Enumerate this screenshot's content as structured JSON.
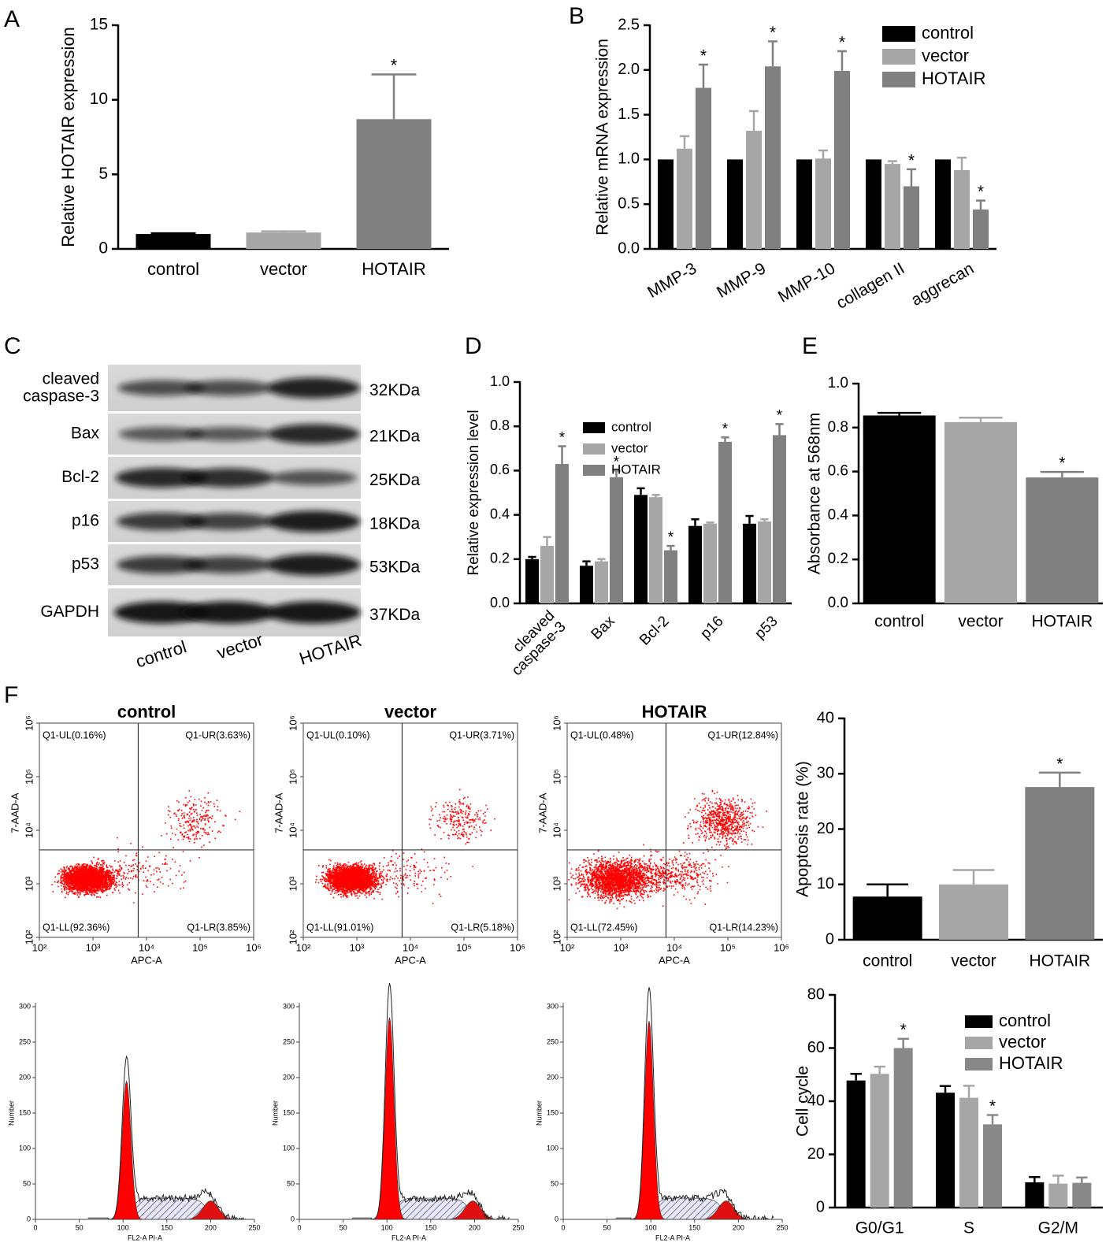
{
  "chart_data": [
    {
      "type": "bar",
      "panel": "A",
      "ylabel": "Relative HOTAIR expression",
      "categories": [
        "control",
        "vector",
        "HOTAIR"
      ],
      "values": [
        1.0,
        1.1,
        8.7
      ],
      "errors": [
        0.05,
        0.08,
        3.0
      ],
      "annotations": [
        null,
        null,
        "*"
      ],
      "colors": [
        "#000000",
        "#a6a6a6",
        "#808080"
      ],
      "ylim": [
        0,
        15
      ],
      "yticks": [
        0,
        5,
        10,
        15
      ]
    },
    {
      "type": "grouped-bar",
      "panel": "B",
      "ylabel": "Relative mRNA expression",
      "categories": [
        "MMP-3",
        "MMP-9",
        "MMP-10",
        "collagen II",
        "aggrecan"
      ],
      "series": [
        {
          "name": "control",
          "color": "#000000",
          "values": [
            1,
            1,
            1,
            1,
            1
          ]
        },
        {
          "name": "vector",
          "color": "#a6a6a6",
          "values": [
            1.12,
            1.32,
            1.01,
            0.95,
            0.88
          ],
          "errors": [
            0.14,
            0.22,
            0.09,
            0.03,
            0.14
          ]
        },
        {
          "name": "HOTAIR",
          "color": "#808080",
          "values": [
            1.8,
            2.04,
            1.99,
            0.7,
            0.44
          ],
          "errors": [
            0.26,
            0.28,
            0.22,
            0.19,
            0.1
          ],
          "annotations": [
            "*",
            "*",
            "*",
            "*",
            "*"
          ]
        }
      ],
      "ylim": [
        0,
        2.5
      ],
      "yticks": [
        {
          "value": 0,
          "label": "0.0"
        },
        0.5,
        {
          "value": 1,
          "label": "1.0"
        },
        1.5,
        {
          "value": 2,
          "label": "2.0"
        },
        2.5
      ]
    },
    {
      "type": "western-blot",
      "panel": "C",
      "proteins": [
        "cleaved\ncaspase-3",
        "Bax",
        "Bcl-2",
        "p16",
        "p53",
        "GAPDH"
      ],
      "sizes": [
        "32KDa",
        "21KDa",
        "25KDa",
        "18KDa",
        "53KDa",
        "37KDa"
      ],
      "lanes": [
        "control",
        "vector",
        "HOTAIR"
      ]
    },
    {
      "type": "grouped-bar",
      "panel": "D",
      "ylabel": "Relative expression level",
      "categories": [
        "cleaved\ncaspase-3",
        "Bax",
        "Bcl-2",
        "p16",
        "p53"
      ],
      "series": [
        {
          "name": "control",
          "color": "#000000",
          "values": [
            0.2,
            0.17,
            0.49,
            0.35,
            0.36
          ],
          "errors": [
            0.01,
            0.02,
            0.03,
            0.03,
            0.035
          ]
        },
        {
          "name": "vector",
          "color": "#a6a6a6",
          "values": [
            0.26,
            0.19,
            0.48,
            0.36,
            0.37
          ],
          "errors": [
            0.04,
            0.01,
            0.01,
            0.005,
            0.01
          ]
        },
        {
          "name": "HOTAIR",
          "color": "#808080",
          "values": [
            0.63,
            0.57,
            0.24,
            0.73,
            0.76
          ],
          "errors": [
            0.08,
            0.03,
            0.02,
            0.02,
            0.05
          ],
          "annotations": [
            "*",
            "*",
            "*",
            "*",
            "*"
          ]
        }
      ],
      "ylim": [
        0,
        1
      ],
      "yticks": [
        {
          "value": 0,
          "label": "0.0"
        },
        0.2,
        0.4,
        0.6,
        0.8,
        {
          "value": 1,
          "label": "1.0"
        }
      ]
    },
    {
      "type": "bar",
      "panel": "E",
      "ylabel": "Absorbance at 568nm",
      "categories": [
        "control",
        "vector",
        "HOTAIR"
      ],
      "values": [
        0.855,
        0.825,
        0.573
      ],
      "errors": [
        0.012,
        0.02,
        0.025
      ],
      "annotations": [
        null,
        null,
        "*"
      ],
      "colors": [
        "#000000",
        "#a6a6a6",
        "#808080"
      ],
      "ylim": [
        0,
        1
      ],
      "yticks": [
        {
          "value": 0,
          "label": "0.0"
        },
        0.2,
        0.4,
        0.6,
        0.8,
        {
          "value": 1,
          "label": "1.0"
        }
      ]
    },
    {
      "type": "flow",
      "panel": "F",
      "title": "control",
      "xlabel": "APC-A",
      "ylabel": "7-AAD-A",
      "scale": "log",
      "xlim": [
        100,
        1000000
      ],
      "ylim": [
        100,
        1000000
      ],
      "xticks": [
        {
          "value": 100,
          "label": "10²"
        },
        {
          "value": 1000,
          "label": "10³"
        },
        {
          "value": 10000,
          "label": "10⁴"
        },
        {
          "value": 100000,
          "label": "10⁵"
        },
        {
          "value": 1000000,
          "label": "10⁶"
        }
      ],
      "yticks": [
        {
          "value": 100,
          "label": "10²"
        },
        {
          "value": 1000,
          "label": "10³"
        },
        {
          "value": 10000,
          "label": "10⁴"
        },
        {
          "value": 100000,
          "label": "10⁵"
        },
        {
          "value": 1000000,
          "label": "10⁶"
        }
      ],
      "gate": [
        7000,
        4300
      ],
      "quadrants": [
        "Q1-UL(0.16%)",
        "Q1-UR(3.63%)",
        "Q1-LL(92.36%)",
        "Q1-LR(3.85%)"
      ]
    },
    {
      "type": "flow",
      "title": "vector",
      "xlabel": "APC-A",
      "ylabel": "7-AAD-A",
      "scale": "log",
      "xlim": [
        100,
        1000000
      ],
      "ylim": [
        100,
        1000000
      ],
      "xticks": [
        {
          "value": 100,
          "label": "10²"
        },
        {
          "value": 1000,
          "label": "10³"
        },
        {
          "value": 10000,
          "label": "10⁴"
        },
        {
          "value": 100000,
          "label": "10⁵"
        },
        {
          "value": 1000000,
          "label": "10⁶"
        }
      ],
      "yticks": [
        {
          "value": 100,
          "label": "10²"
        },
        {
          "value": 1000,
          "label": "10³"
        },
        {
          "value": 10000,
          "label": "10⁴"
        },
        {
          "value": 100000,
          "label": "10⁵"
        },
        {
          "value": 1000000,
          "label": "10⁶"
        }
      ],
      "gate": [
        7000,
        4300
      ],
      "quadrants": [
        "Q1-UL(0.10%)",
        "Q1-UR(3.71%)",
        "Q1-LL(91.01%)",
        "Q1-LR(5.18%)"
      ]
    },
    {
      "type": "flow",
      "title": "HOTAIR",
      "xlabel": "APC-A",
      "ylabel": "7-AAD-A",
      "scale": "log",
      "xlim": [
        100,
        1000000
      ],
      "ylim": [
        100,
        1000000
      ],
      "xticks": [
        {
          "value": 100,
          "label": "10²"
        },
        {
          "value": 1000,
          "label": "10³"
        },
        {
          "value": 10000,
          "label": "10⁴"
        },
        {
          "value": 100000,
          "label": "10⁵"
        },
        {
          "value": 1000000,
          "label": "10⁶"
        }
      ],
      "yticks": [
        {
          "value": 100,
          "label": "10²"
        },
        {
          "value": 1000,
          "label": "10³"
        },
        {
          "value": 10000,
          "label": "10⁴"
        },
        {
          "value": 100000,
          "label": "10⁵"
        },
        {
          "value": 1000000,
          "label": "10⁶"
        }
      ],
      "gate": [
        7000,
        4300
      ],
      "quadrants": [
        "Q1-UL(0.48%)",
        "Q1-UR(12.84%)",
        "Q1-LL(72.45%)",
        "Q1-LR(14.23%)"
      ]
    },
    {
      "type": "bar",
      "ylabel": "Apoptosis rate (%)",
      "categories": [
        "control",
        "vector",
        "HOTAIR"
      ],
      "values": [
        7.8,
        10,
        27.6
      ],
      "errors": [
        2.2,
        2.6,
        2.6
      ],
      "annotations": [
        null,
        null,
        "*"
      ],
      "colors": [
        "#000000",
        "#a6a6a6",
        "#808080"
      ],
      "ylim": [
        0,
        40
      ],
      "yticks": [
        0,
        10,
        20,
        30,
        40
      ]
    },
    {
      "type": "cytometry-histogram",
      "xlabel": "FL2-A PI-A",
      "ylabel": "Number",
      "xlim": [
        0,
        250
      ],
      "ylim": [
        0,
        300
      ],
      "xticks": [
        0,
        50,
        100,
        150,
        200,
        250
      ],
      "yticks": [
        0,
        50,
        100,
        150,
        200,
        250,
        300
      ]
    },
    {
      "type": "cytometry-histogram",
      "xlabel": "FL2-A PI-A",
      "ylabel": "Number",
      "xlim": [
        0,
        250
      ],
      "ylim": [
        0,
        300
      ],
      "xticks": [
        0,
        50,
        100,
        150,
        200,
        250
      ],
      "yticks": [
        0,
        50,
        100,
        150,
        200,
        250,
        300
      ]
    },
    {
      "type": "cytometry-histogram",
      "xlabel": "FL2-A PI-A",
      "ylabel": "Number",
      "xlim": [
        0,
        250
      ],
      "ylim": [
        0,
        300
      ],
      "xticks": [
        0,
        50,
        100,
        150,
        200,
        250
      ],
      "yticks": [
        0,
        50,
        100,
        150,
        200,
        250,
        300
      ]
    },
    {
      "type": "grouped-bar",
      "ylabel": "Cell cycle",
      "categories": [
        "G0/G1",
        "S",
        "G2/M"
      ],
      "series": [
        {
          "name": "control",
          "color": "#000000",
          "values": [
            47.8,
            43.2,
            9.5
          ],
          "errors": [
            2.5,
            2.5,
            2
          ]
        },
        {
          "name": "vector",
          "color": "#a6a6a6",
          "values": [
            50.3,
            41.3,
            9
          ],
          "errors": [
            2.7,
            4.5,
            3
          ]
        },
        {
          "name": "HOTAIR",
          "color": "#888888",
          "values": [
            60,
            31.3,
            9.3
          ],
          "errors": [
            3.5,
            3.5,
            2
          ],
          "annotations": [
            "*",
            "*",
            null
          ]
        }
      ],
      "ylim": [
        0,
        80
      ],
      "yticks": [
        0,
        20,
        40,
        60,
        80
      ]
    }
  ]
}
